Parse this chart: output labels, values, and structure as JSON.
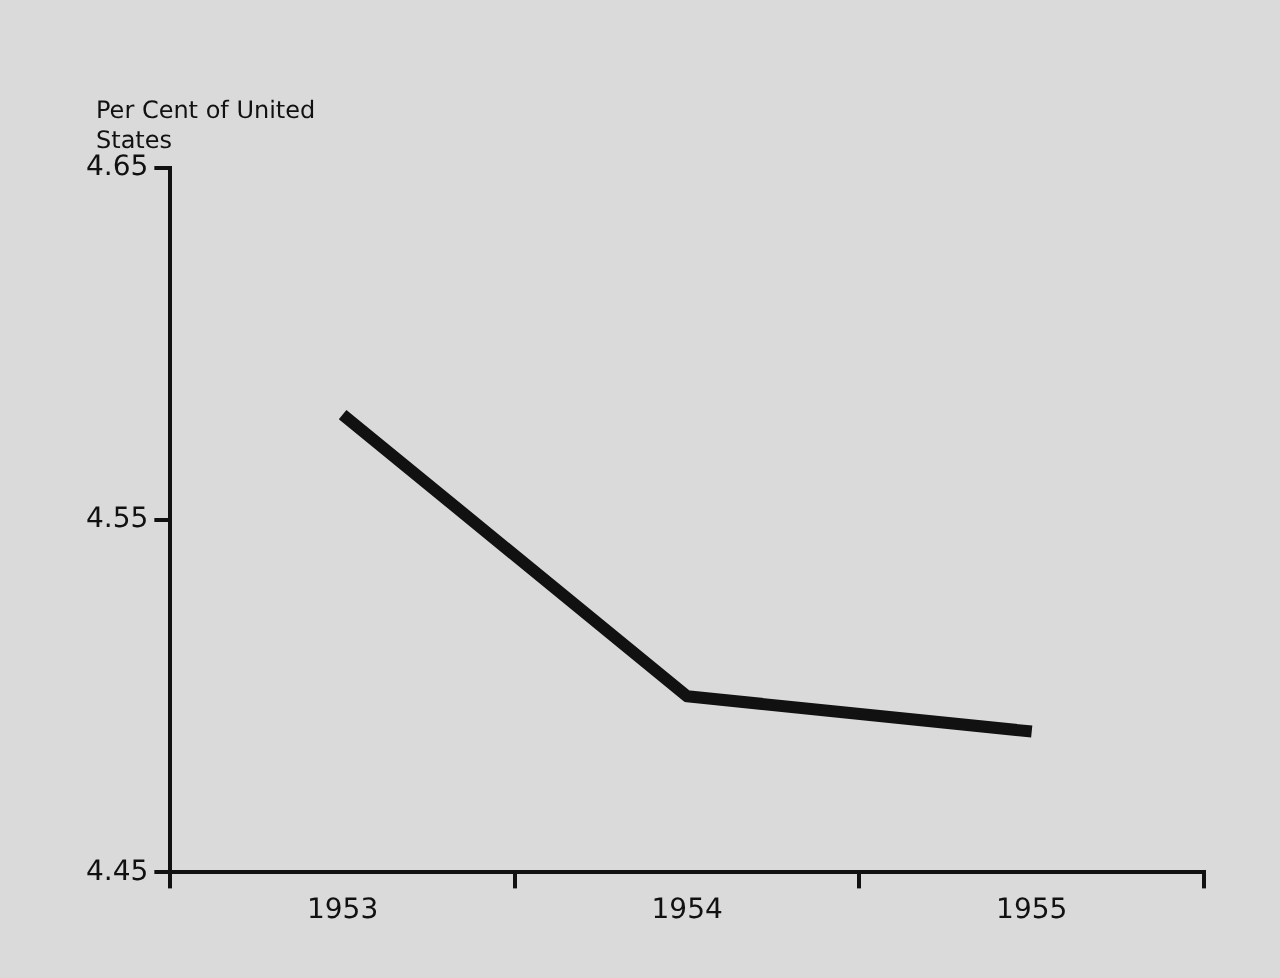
{
  "chart_data": {
    "type": "line",
    "ylabel": "Per Cent of United States",
    "categories": [
      "1953",
      "1954",
      "1955"
    ],
    "series": [
      {
        "color": "#111111",
        "values": [
          4.58,
          4.5,
          4.49
        ]
      }
    ],
    "ylim": [
      4.45,
      4.65
    ],
    "yticks": [
      4.45,
      4.55,
      4.65
    ],
    "grid": false,
    "legend": false,
    "marker": "none",
    "line_style": "solid"
  }
}
